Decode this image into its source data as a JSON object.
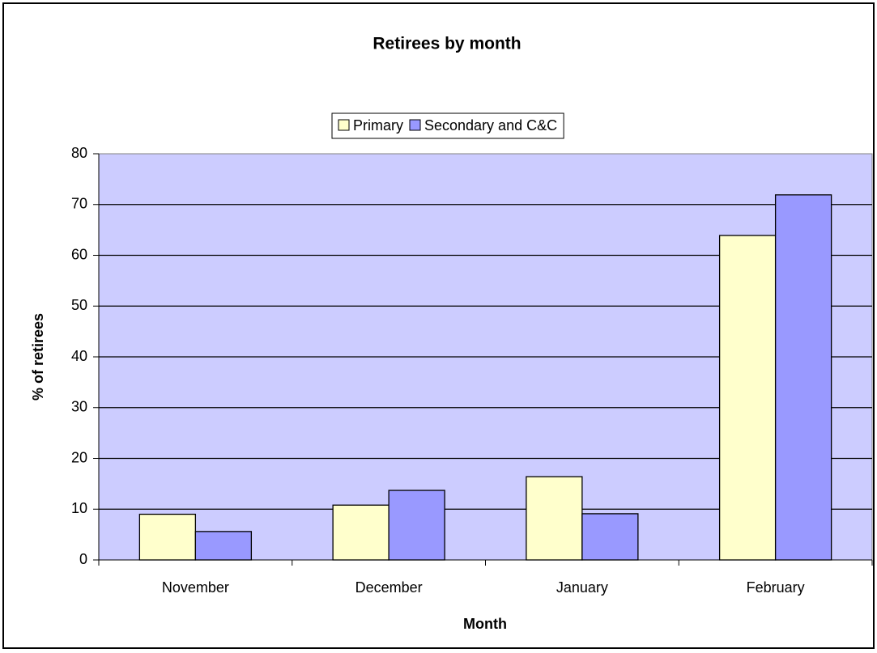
{
  "chart_data": {
    "type": "bar",
    "title": "Retirees by month",
    "x_label": "Month",
    "y_label": "% of retirees",
    "categories": [
      "November",
      "December",
      "January",
      "February"
    ],
    "series": [
      {
        "name": "Primary",
        "color": "#ffffcc",
        "values": [
          9.0,
          10.8,
          16.4,
          63.9
        ]
      },
      {
        "name": "Secondary and C&C",
        "color": "#9999ff",
        "values": [
          5.6,
          13.7,
          9.1,
          71.9
        ]
      }
    ],
    "ylim": [
      0,
      80
    ],
    "yticks": [
      0,
      10,
      20,
      30,
      40,
      50,
      60,
      70,
      80
    ],
    "grid": true,
    "plot_background": "#ccccff",
    "legend": "top"
  }
}
